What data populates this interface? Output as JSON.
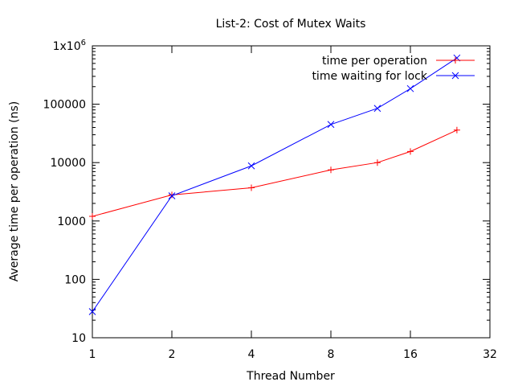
{
  "chart_data": {
    "type": "line",
    "title": "List-2: Cost of Mutex Waits",
    "xlabel": "Thread Number",
    "ylabel": "Average time per operation (ns)",
    "x_scale": "log2",
    "y_scale": "log10",
    "xlim": [
      1,
      32
    ],
    "ylim": [
      10,
      1000000
    ],
    "x_ticks": [
      1,
      2,
      4,
      8,
      16,
      32
    ],
    "x_tick_labels": [
      "1",
      "2",
      "4",
      "8",
      "16",
      "32"
    ],
    "y_ticks": [
      10,
      100,
      1000,
      10000,
      100000,
      1000000
    ],
    "y_tick_labels": [
      "10",
      "100",
      "1000",
      "10000",
      "100000",
      "1x10^6"
    ],
    "legend_position": "top-right",
    "grid": false,
    "series": [
      {
        "name": "time per operation",
        "color": "#ff0000",
        "marker": "plus",
        "x": [
          1,
          2,
          4,
          8,
          12,
          16,
          24
        ],
        "y": [
          1200,
          2800,
          3700,
          7500,
          10000,
          15500,
          36000
        ]
      },
      {
        "name": "time waiting for lock",
        "color": "#0000ff",
        "marker": "cross",
        "x": [
          1,
          2,
          4,
          8,
          12,
          16,
          24
        ],
        "y": [
          28,
          2700,
          8800,
          45000,
          85000,
          185000,
          620000
        ]
      }
    ]
  }
}
